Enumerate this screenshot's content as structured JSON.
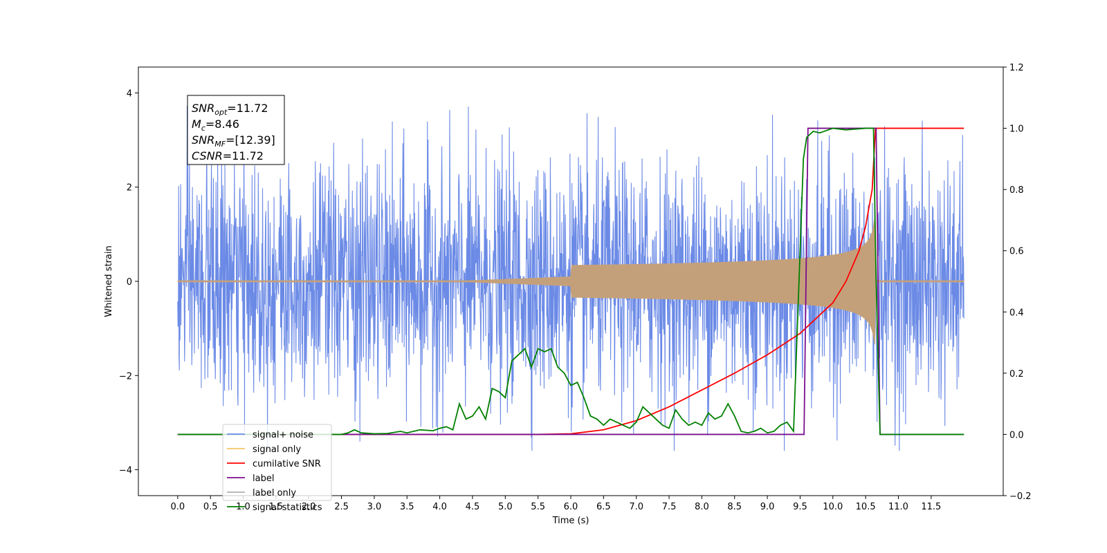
{
  "chart_data": {
    "type": "line",
    "title": "",
    "xlabel": "Time (s)",
    "ylabel": "Whitened strain",
    "xlim": [
      -0.6,
      12.6
    ],
    "ylim": [
      -4.55,
      4.55
    ],
    "y2lim": [
      -0.2,
      1.2
    ],
    "grid": false,
    "legend_position": "lower-left",
    "x_ticks": [
      "0.0",
      "0.5",
      "1.0",
      "1.5",
      "2.0",
      "2.5",
      "3.0",
      "3.5",
      "4.0",
      "4.5",
      "5.0",
      "5.5",
      "6.0",
      "6.5",
      "7.0",
      "7.5",
      "8.0",
      "8.5",
      "9.0",
      "9.5",
      "10.0",
      "10.5",
      "11.0",
      "11.5"
    ],
    "y_ticks": [
      "−4",
      "−2",
      "0",
      "2",
      "4"
    ],
    "y2_ticks": [
      "−0.2",
      "0.0",
      "0.2",
      "0.4",
      "0.6",
      "0.8",
      "1.0",
      "1.2"
    ],
    "annotation": {
      "lines": [
        {
          "main": "SNR",
          "sub": "opt",
          "rest": "=11.72"
        },
        {
          "main": "M",
          "sub": "c",
          "rest": "=8.46"
        },
        {
          "main": "SNR",
          "sub": "MF",
          "rest": "=[12.39]"
        },
        {
          "main": "CSNR",
          "sub": "",
          "rest": "=11.72"
        }
      ]
    },
    "series": [
      {
        "name": "signal+ noise",
        "color": "#6b8ae6",
        "axis": "left",
        "kind": "noise",
        "x_range": [
          0,
          12
        ],
        "amplitude_std": 1.25
      },
      {
        "name": "signal only",
        "color": "#f5c46a",
        "axis": "left",
        "kind": "chirp",
        "x_range": [
          0,
          12
        ],
        "merger_time": 10.65,
        "peak_amplitude": 1.35
      },
      {
        "name": "cumilative SNR",
        "color": "#ff0000",
        "axis": "right",
        "x": [
          0,
          5.5,
          6.0,
          6.5,
          7.0,
          7.5,
          8.0,
          8.5,
          9.0,
          9.5,
          9.8,
          10.0,
          10.2,
          10.4,
          10.5,
          10.6,
          10.65,
          10.7,
          12
        ],
        "y": [
          0,
          0,
          0.002,
          0.015,
          0.045,
          0.09,
          0.145,
          0.2,
          0.26,
          0.33,
          0.39,
          0.43,
          0.5,
          0.6,
          0.68,
          0.8,
          1.0,
          1.0,
          1.0
        ]
      },
      {
        "name": "label",
        "color": "#7b0e8e",
        "axis": "right",
        "x": [
          0,
          9.56,
          9.62,
          10.66,
          10.72,
          12
        ],
        "y": [
          0,
          0,
          1,
          1,
          0,
          0
        ]
      },
      {
        "name": "label only",
        "color": "#b0b0b0",
        "axis": "right",
        "x": [],
        "y": []
      },
      {
        "name": "signal statistics",
        "color": "#008000",
        "axis": "right",
        "x": [
          0,
          2.5,
          2.6,
          2.7,
          2.8,
          3.0,
          3.2,
          3.4,
          3.5,
          3.7,
          3.9,
          4.0,
          4.1,
          4.2,
          4.3,
          4.4,
          4.5,
          4.6,
          4.7,
          4.8,
          4.9,
          5.0,
          5.1,
          5.2,
          5.3,
          5.4,
          5.5,
          5.6,
          5.7,
          5.8,
          5.9,
          6.0,
          6.1,
          6.2,
          6.3,
          6.4,
          6.5,
          6.6,
          6.7,
          6.8,
          6.9,
          7.0,
          7.1,
          7.2,
          7.3,
          7.4,
          7.5,
          7.6,
          7.7,
          7.8,
          7.9,
          8.0,
          8.1,
          8.2,
          8.3,
          8.4,
          8.5,
          8.6,
          8.7,
          8.8,
          8.9,
          9.0,
          9.1,
          9.2,
          9.3,
          9.4,
          9.5,
          9.55,
          9.6,
          9.7,
          9.8,
          10.0,
          10.2,
          10.5,
          10.62,
          10.66,
          10.72,
          12
        ],
        "y": [
          0,
          0,
          0.005,
          0.015,
          0.005,
          0.002,
          0.003,
          0.01,
          0.005,
          0.015,
          0.012,
          0.02,
          0.025,
          0.015,
          0.1,
          0.05,
          0.06,
          0.09,
          0.05,
          0.15,
          0.14,
          0.12,
          0.24,
          0.26,
          0.28,
          0.22,
          0.28,
          0.27,
          0.28,
          0.22,
          0.2,
          0.16,
          0.17,
          0.12,
          0.06,
          0.05,
          0.03,
          0.05,
          0.04,
          0.03,
          0.02,
          0.04,
          0.09,
          0.07,
          0.05,
          0.03,
          0.02,
          0.08,
          0.05,
          0.03,
          0.04,
          0.03,
          0.07,
          0.05,
          0.06,
          0.1,
          0.06,
          0.01,
          0.005,
          0.01,
          0.02,
          0.005,
          0.01,
          0.03,
          0.04,
          0.01,
          0.6,
          0.9,
          0.97,
          0.99,
          0.985,
          1.0,
          0.995,
          1.0,
          1.0,
          0.5,
          0,
          0
        ]
      }
    ]
  }
}
